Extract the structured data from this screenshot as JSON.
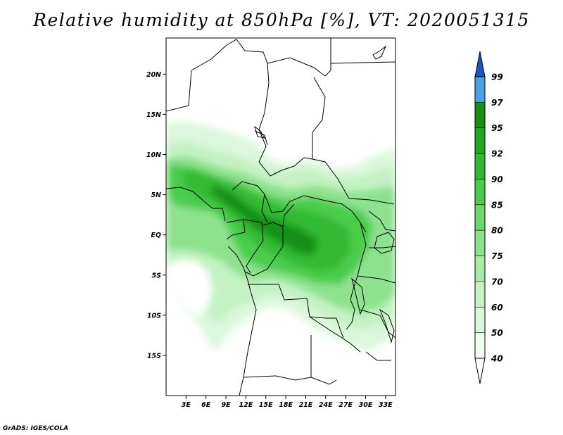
{
  "title": "Relative humidity at 850hPa [%], VT: 2020051315",
  "credit": "GrADS: IGES/COLA",
  "map": {
    "lon_range": [
      0,
      34.5
    ],
    "lat_range": [
      -20,
      24.5
    ],
    "lat_ticks": [
      {
        "value": 20,
        "label": "20N"
      },
      {
        "value": 15,
        "label": "15N"
      },
      {
        "value": 10,
        "label": "10N"
      },
      {
        "value": 5,
        "label": "5N"
      },
      {
        "value": 0,
        "label": "EQ"
      },
      {
        "value": -5,
        "label": "5S"
      },
      {
        "value": -10,
        "label": "10S"
      },
      {
        "value": -15,
        "label": "15S"
      }
    ],
    "lon_ticks": [
      {
        "value": 3,
        "label": "3E"
      },
      {
        "value": 6,
        "label": "6E"
      },
      {
        "value": 9,
        "label": "9E"
      },
      {
        "value": 12,
        "label": "12E"
      },
      {
        "value": 15,
        "label": "15E"
      },
      {
        "value": 18,
        "label": "18E"
      },
      {
        "value": 21,
        "label": "21E"
      },
      {
        "value": 24,
        "label": "24E"
      },
      {
        "value": 27,
        "label": "27E"
      },
      {
        "value": 30,
        "label": "30E"
      },
      {
        "value": 33,
        "label": "33E"
      }
    ]
  },
  "colorbar": {
    "levels": [
      {
        "label": "40",
        "color": "#f0fff0"
      },
      {
        "label": "50",
        "color": "#dcf8dc"
      },
      {
        "label": "60",
        "color": "#c4f2c4"
      },
      {
        "label": "70",
        "color": "#a8eaa8"
      },
      {
        "label": "75",
        "color": "#8ee28e"
      },
      {
        "label": "80",
        "color": "#6cd86c"
      },
      {
        "label": "85",
        "color": "#4ccc4c"
      },
      {
        "label": "90",
        "color": "#30ba30"
      },
      {
        "label": "92",
        "color": "#1ea81e"
      },
      {
        "label": "95",
        "color": "#149014"
      },
      {
        "label": "97",
        "color": "#4aa0ea"
      },
      {
        "label": "99",
        "color": "#1e6ed8"
      }
    ],
    "below_color": "#ffffff",
    "above_color": "#1a55c0"
  }
}
